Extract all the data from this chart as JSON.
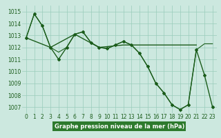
{
  "line1_x": [
    0,
    1,
    2,
    3,
    4,
    5,
    6,
    7,
    8,
    9,
    10,
    11,
    12,
    13,
    14,
    15,
    16,
    17,
    18,
    19,
    20,
    21,
    22,
    23
  ],
  "line1_y": [
    1012.8,
    1014.8,
    1013.8,
    1012.0,
    1011.0,
    1012.0,
    1013.1,
    1013.3,
    1012.4,
    1012.0,
    1011.9,
    1012.2,
    1012.5,
    1012.2,
    1011.5,
    1010.4,
    1009.0,
    1008.2,
    1007.2,
    1006.8,
    1007.2,
    1011.8,
    1009.7,
    1007.0
  ],
  "line2_x": [
    0,
    1,
    2,
    3,
    4,
    5,
    6,
    7,
    8,
    9,
    10,
    11,
    12,
    13,
    14,
    15,
    16,
    17,
    18,
    19,
    20,
    21,
    22,
    23
  ],
  "line2_y": [
    1012.8,
    1014.8,
    1013.8,
    1012.0,
    1011.6,
    1012.0,
    1013.1,
    1013.3,
    1012.4,
    1012.0,
    1011.9,
    1012.2,
    1012.5,
    1012.2,
    1011.5,
    1010.4,
    1009.0,
    1008.2,
    1007.2,
    1006.8,
    1007.2,
    1011.8,
    1012.3,
    1012.3
  ],
  "line3_x": [
    0,
    3,
    6,
    9,
    12,
    15,
    18,
    21
  ],
  "line3_y": [
    1012.8,
    1012.0,
    1013.1,
    1012.0,
    1012.2,
    1012.2,
    1012.2,
    1012.2
  ],
  "ylim": [
    1006.5,
    1015.5
  ],
  "xlim": [
    -0.5,
    23.5
  ],
  "yticks": [
    1007,
    1008,
    1009,
    1010,
    1011,
    1012,
    1013,
    1014,
    1015
  ],
  "xticks": [
    0,
    1,
    2,
    3,
    4,
    5,
    6,
    7,
    8,
    9,
    10,
    11,
    12,
    13,
    14,
    15,
    16,
    17,
    18,
    19,
    20,
    21,
    22,
    23
  ],
  "xlabel": "Graphe pression niveau de la mer (hPa)",
  "line_color": "#1a5c1a",
  "bg_color": "#cce8df",
  "grid_color": "#99ccbb",
  "xlabel_bg": "#2d7a2d",
  "xlabel_fg": "#ffffff",
  "tick_fontsize": 5.5,
  "xlabel_fontsize": 6.0
}
